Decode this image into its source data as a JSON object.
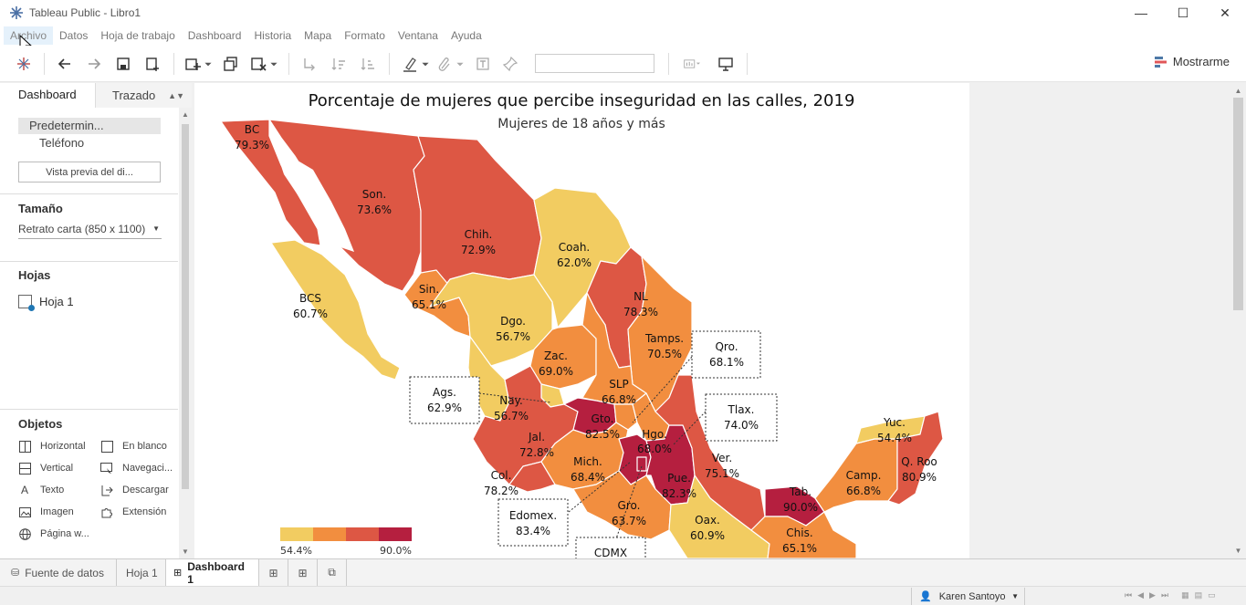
{
  "window": {
    "title": "Tableau Public - Libro1",
    "minimize": "—",
    "maximize": "☐",
    "close": "✕"
  },
  "menu": [
    "Archivo",
    "Datos",
    "Hoja de trabajo",
    "Dashboard",
    "Historia",
    "Mapa",
    "Formato",
    "Ventana",
    "Ayuda"
  ],
  "toolbar": {
    "show_me": "Mostrarme"
  },
  "left_panel": {
    "tabs": [
      "Dashboard",
      "Trazado"
    ],
    "device": {
      "default": "Predetermin...",
      "phone": "Teléfono",
      "preview_button": "Vista previa del di..."
    },
    "size": {
      "heading": "Tamaño",
      "value": "Retrato carta (850 x 1100)"
    },
    "sheets": {
      "heading": "Hojas",
      "items": [
        "Hoja 1"
      ]
    },
    "objects": {
      "heading": "Objetos",
      "items": [
        {
          "label": "Horizontal",
          "icon": "horizontal-icon"
        },
        {
          "label": "En blanco",
          "icon": "blank-icon"
        },
        {
          "label": "Vertical",
          "icon": "vertical-icon"
        },
        {
          "label": "Navegaci...",
          "icon": "navigation-icon"
        },
        {
          "label": "Texto",
          "icon": "text-icon"
        },
        {
          "label": "Descargar",
          "icon": "download-icon"
        },
        {
          "label": "Imagen",
          "icon": "image-icon"
        },
        {
          "label": "Extensión",
          "icon": "extension-icon"
        },
        {
          "label": "Página w...",
          "icon": "web-page-icon"
        }
      ]
    }
  },
  "dashboard": {
    "title": "Porcentaje de mujeres que percibe inseguridad en las calles, 2019",
    "subtitle": "Mujeres de 18 años y más",
    "legend": {
      "min_label": "54.4%",
      "max_label": "90.0%",
      "colors": [
        "#f2cc61",
        "#f28e3f",
        "#dd5744",
        "#b51f3f"
      ]
    },
    "states": [
      {
        "abbr": "BC",
        "value": "79.3%"
      },
      {
        "abbr": "Son.",
        "value": "73.6%"
      },
      {
        "abbr": "Chih.",
        "value": "72.9%"
      },
      {
        "abbr": "Coah.",
        "value": "62.0%"
      },
      {
        "abbr": "BCS",
        "value": "60.7%"
      },
      {
        "abbr": "Sin.",
        "value": "65.1%"
      },
      {
        "abbr": "NL",
        "value": "78.3%"
      },
      {
        "abbr": "Dgo.",
        "value": "56.7%"
      },
      {
        "abbr": "Tamps.",
        "value": "70.5%"
      },
      {
        "abbr": "Zac.",
        "value": "69.0%"
      },
      {
        "abbr": "Qro.",
        "value": "68.1%"
      },
      {
        "abbr": "Ags.",
        "value": "62.9%"
      },
      {
        "abbr": "SLP",
        "value": "66.8%"
      },
      {
        "abbr": "Nay.",
        "value": "56.7%"
      },
      {
        "abbr": "Tlax.",
        "value": "74.0%"
      },
      {
        "abbr": "Gto.",
        "value": "82.5%"
      },
      {
        "abbr": "Yuc.",
        "value": "54.4%"
      },
      {
        "abbr": "Jal.",
        "value": "72.8%"
      },
      {
        "abbr": "Hgo.",
        "value": "68.0%"
      },
      {
        "abbr": "Ver.",
        "value": "75.1%"
      },
      {
        "abbr": "Q. Roo",
        "value": "80.9%"
      },
      {
        "abbr": "Mich.",
        "value": "68.4%"
      },
      {
        "abbr": "Camp.",
        "value": "66.8%"
      },
      {
        "abbr": "Col.",
        "value": "78.2%"
      },
      {
        "abbr": "Pue.",
        "value": "82.3%"
      },
      {
        "abbr": "Tab.",
        "value": "90.0%"
      },
      {
        "abbr": "Edomex.",
        "value": "83.4%"
      },
      {
        "abbr": "Gro.",
        "value": "63.7%"
      },
      {
        "abbr": "Oax.",
        "value": "60.9%"
      },
      {
        "abbr": "Chis.",
        "value": "65.1%"
      },
      {
        "abbr": "CDMX",
        "value": ""
      }
    ]
  },
  "sheet_tabs": {
    "data_source": "Fuente de datos",
    "sheet": "Hoja 1",
    "dashboard": "Dashboard 1"
  },
  "status": {
    "user": "Karen Santoyo"
  }
}
